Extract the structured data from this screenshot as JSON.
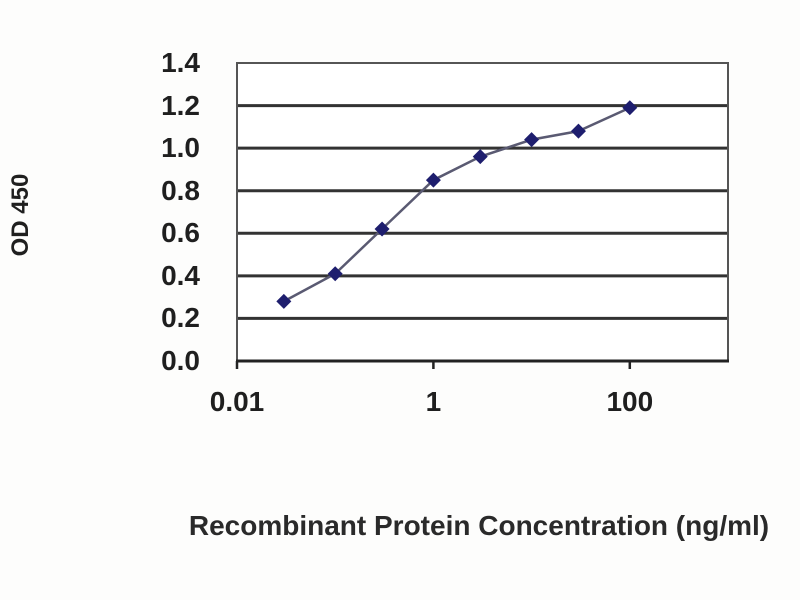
{
  "figure": {
    "background": "#fdfdfc"
  },
  "chart_data": {
    "type": "line",
    "title": "",
    "xlabel": "Recombinant Protein Concentration (ng/ml)",
    "ylabel": "OD 450",
    "x_scale": "log",
    "y_scale": "linear",
    "xlim": [
      0.01,
      1000
    ],
    "ylim": [
      0.0,
      1.4
    ],
    "x": [
      0.03,
      0.1,
      0.3,
      1,
      3,
      10,
      30,
      100
    ],
    "y": [
      0.28,
      0.41,
      0.62,
      0.85,
      0.96,
      1.04,
      1.08,
      1.19
    ],
    "y_ticks": [
      1.4,
      1.2,
      1.0,
      0.8,
      0.6,
      0.4,
      0.2,
      0.0
    ],
    "y_tick_labels": [
      "1.4",
      "1.2",
      "1.0",
      "0.8",
      "0.6",
      "0.4",
      "0.2",
      "0.0"
    ],
    "x_ticks": [
      0.01,
      1,
      100
    ],
    "x_tick_labels": [
      "0.01",
      "1",
      "100"
    ],
    "grid": "horizontal",
    "legend": "none",
    "marker": "diamond",
    "marker_size": 7.5,
    "colors": {
      "marker": "#1e1e6e",
      "line": "#5a5a72",
      "grid": "#333333",
      "border": "#555555",
      "axis": "#222222",
      "text": "#1f1f1f",
      "plot_background": "#ffffff"
    }
  }
}
